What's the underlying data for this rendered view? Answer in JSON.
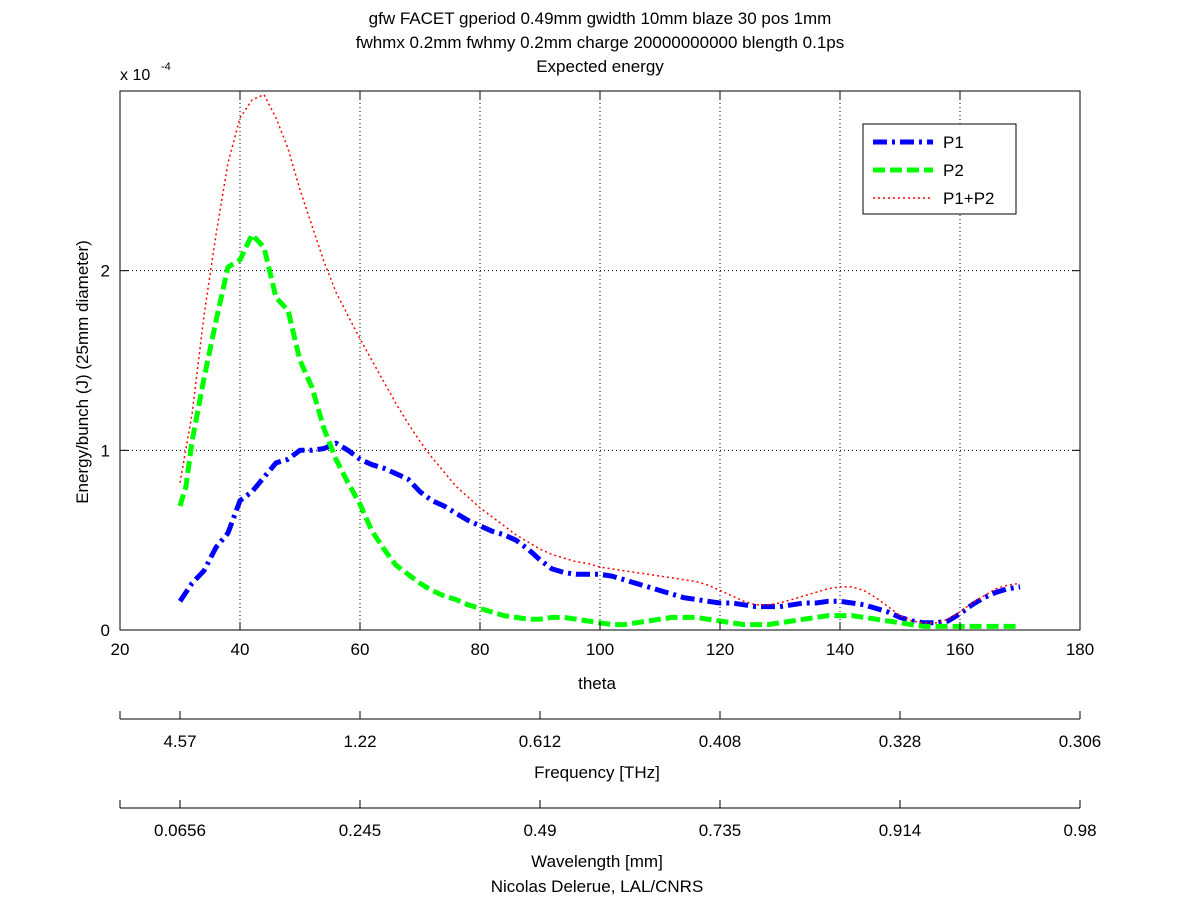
{
  "figure": {
    "title_lines": [
      "gfw FACET gperiod 0.49mm gwidth 10mm blaze 30 pos 1mm",
      "fwhmx 0.2mm fwhmy 0.2mm charge 20000000000 blength 0.1ps",
      "Expected energy"
    ],
    "credit": "Nicolas Delerue, LAL/CNRS"
  },
  "chart_data": {
    "type": "line",
    "xlabel": "theta",
    "ylabel": "Energy/bunch (J) (25mm diameter)",
    "y_multiplier_label": "x 10",
    "y_multiplier_exponent": "-4",
    "xlim": [
      20,
      180
    ],
    "ylim": [
      0,
      3.0
    ],
    "grid": true,
    "legend_position": "top-right",
    "x_ticks": [
      20,
      40,
      60,
      80,
      100,
      120,
      140,
      160,
      180
    ],
    "y_ticks": [
      0,
      1,
      2
    ],
    "series": [
      {
        "name": "P1",
        "color": "#0000ff",
        "style": "dash-dot",
        "x": [
          30,
          32,
          34,
          36,
          38,
          40,
          42,
          44,
          46,
          48,
          50,
          52,
          54,
          56,
          58,
          60,
          62,
          64,
          66,
          68,
          70,
          72,
          74,
          76,
          78,
          80,
          82,
          84,
          86,
          88,
          90,
          92,
          94,
          96,
          98,
          100,
          102,
          104,
          106,
          108,
          110,
          112,
          114,
          116,
          118,
          120,
          122,
          124,
          126,
          128,
          130,
          132,
          134,
          136,
          138,
          140,
          142,
          144,
          146,
          148,
          150,
          152,
          154,
          156,
          158,
          160,
          162,
          164,
          166,
          168,
          170
        ],
        "y": [
          0.16,
          0.26,
          0.33,
          0.46,
          0.54,
          0.72,
          0.77,
          0.85,
          0.93,
          0.95,
          1.0,
          1.0,
          1.01,
          1.04,
          1.0,
          0.95,
          0.92,
          0.9,
          0.87,
          0.84,
          0.77,
          0.72,
          0.69,
          0.65,
          0.61,
          0.58,
          0.55,
          0.53,
          0.5,
          0.45,
          0.39,
          0.34,
          0.32,
          0.31,
          0.31,
          0.31,
          0.3,
          0.28,
          0.26,
          0.24,
          0.22,
          0.2,
          0.18,
          0.17,
          0.16,
          0.15,
          0.15,
          0.14,
          0.13,
          0.13,
          0.13,
          0.14,
          0.15,
          0.15,
          0.16,
          0.16,
          0.15,
          0.14,
          0.12,
          0.1,
          0.07,
          0.05,
          0.04,
          0.04,
          0.05,
          0.09,
          0.14,
          0.18,
          0.21,
          0.23,
          0.24
        ]
      },
      {
        "name": "P2",
        "color": "#00ff00",
        "style": "dashed",
        "x": [
          30,
          31,
          32,
          34,
          36,
          38,
          40,
          42,
          44,
          46,
          48,
          50,
          52,
          54,
          56,
          58,
          60,
          62,
          64,
          66,
          68,
          70,
          72,
          74,
          76,
          78,
          80,
          82,
          84,
          86,
          88,
          90,
          92,
          94,
          96,
          98,
          100,
          102,
          104,
          106,
          108,
          110,
          112,
          114,
          116,
          118,
          120,
          122,
          124,
          126,
          128,
          130,
          132,
          134,
          136,
          138,
          140,
          142,
          144,
          146,
          148,
          150,
          152,
          154,
          156,
          158,
          160,
          162,
          164,
          166,
          168,
          170
        ],
        "y": [
          0.69,
          0.8,
          1.05,
          1.4,
          1.72,
          2.02,
          2.06,
          2.2,
          2.13,
          1.85,
          1.78,
          1.5,
          1.35,
          1.12,
          0.95,
          0.82,
          0.7,
          0.55,
          0.45,
          0.36,
          0.31,
          0.26,
          0.22,
          0.19,
          0.17,
          0.14,
          0.12,
          0.1,
          0.08,
          0.07,
          0.06,
          0.06,
          0.07,
          0.07,
          0.06,
          0.05,
          0.04,
          0.03,
          0.03,
          0.04,
          0.05,
          0.06,
          0.07,
          0.07,
          0.07,
          0.06,
          0.05,
          0.04,
          0.03,
          0.03,
          0.03,
          0.04,
          0.05,
          0.06,
          0.07,
          0.08,
          0.08,
          0.08,
          0.07,
          0.06,
          0.05,
          0.04,
          0.03,
          0.02,
          0.02,
          0.02,
          0.02,
          0.02,
          0.02,
          0.02,
          0.02,
          0.02
        ]
      },
      {
        "name": "P1+P2",
        "color": "#ff0000",
        "style": "dotted",
        "x": [
          30,
          32,
          34,
          36,
          38,
          40,
          42,
          44,
          46,
          48,
          50,
          52,
          54,
          56,
          58,
          60,
          62,
          64,
          66,
          68,
          70,
          72,
          74,
          76,
          78,
          80,
          82,
          84,
          86,
          88,
          90,
          92,
          94,
          96,
          98,
          100,
          102,
          104,
          106,
          108,
          110,
          112,
          114,
          116,
          118,
          120,
          122,
          124,
          126,
          128,
          130,
          132,
          134,
          136,
          138,
          140,
          142,
          144,
          146,
          148,
          150,
          152,
          154,
          156,
          158,
          160,
          162,
          164,
          166,
          168,
          170
        ],
        "y": [
          0.82,
          1.2,
          1.75,
          2.2,
          2.6,
          2.85,
          2.95,
          2.98,
          2.85,
          2.68,
          2.45,
          2.25,
          2.05,
          1.88,
          1.75,
          1.62,
          1.5,
          1.38,
          1.26,
          1.15,
          1.05,
          0.96,
          0.88,
          0.8,
          0.74,
          0.68,
          0.63,
          0.58,
          0.53,
          0.49,
          0.45,
          0.42,
          0.4,
          0.38,
          0.37,
          0.35,
          0.34,
          0.33,
          0.32,
          0.31,
          0.3,
          0.29,
          0.28,
          0.27,
          0.25,
          0.22,
          0.19,
          0.16,
          0.14,
          0.14,
          0.15,
          0.17,
          0.19,
          0.21,
          0.23,
          0.24,
          0.24,
          0.22,
          0.18,
          0.13,
          0.08,
          0.05,
          0.04,
          0.04,
          0.06,
          0.1,
          0.15,
          0.19,
          0.23,
          0.25,
          0.26
        ]
      }
    ],
    "secondary_axes": [
      {
        "label": "Frequency [THz]",
        "tick_labels": [
          "4.57",
          "1.22",
          "0.612",
          "0.408",
          "0.328",
          "0.306"
        ],
        "tick_theta": [
          30,
          60,
          90,
          120,
          150,
          180
        ]
      },
      {
        "label": "Wavelength [mm]",
        "tick_labels": [
          "0.0656",
          "0.245",
          "0.49",
          "0.735",
          "0.914",
          "0.98"
        ],
        "tick_theta": [
          30,
          60,
          90,
          120,
          150,
          180
        ]
      }
    ]
  }
}
